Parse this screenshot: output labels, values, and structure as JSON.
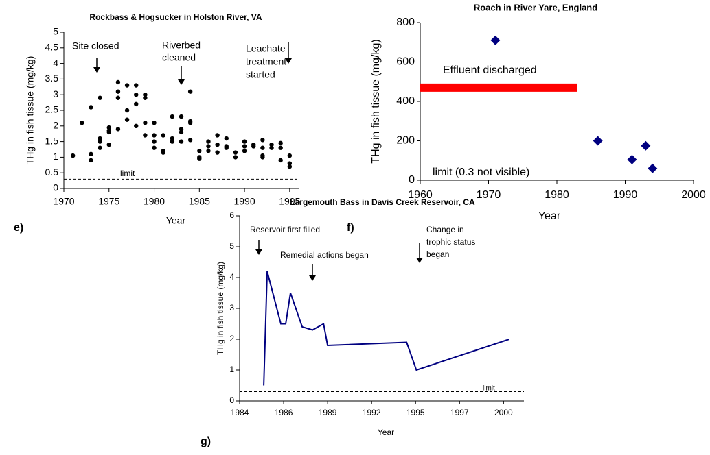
{
  "chart_data": [
    {
      "type": "scatter",
      "title": "Rockbass & Hogsucker in Holston River, VA",
      "panel_label": "e)",
      "x_label": "Year",
      "y_label": "THg in fish tissue (mg/kg)",
      "marker": "circle",
      "color": "#000000",
      "xlim": [
        1970,
        1996
      ],
      "xticks": [
        1970,
        1975,
        1980,
        1985,
        1990,
        1995
      ],
      "ylim": [
        0,
        5
      ],
      "yticks": [
        0,
        0.5,
        1,
        1.5,
        2,
        2.5,
        3,
        3.5,
        4,
        4.5,
        5
      ],
      "x": [
        1971,
        1972,
        1973,
        1973,
        1973,
        1974,
        1974,
        1974,
        1974,
        1975,
        1975,
        1975,
        1975,
        1976,
        1976,
        1976,
        1976,
        1977,
        1977,
        1977,
        1978,
        1978,
        1978,
        1978,
        1979,
        1979,
        1979,
        1979,
        1980,
        1980,
        1980,
        1980,
        1981,
        1981,
        1981,
        1982,
        1982,
        1982,
        1983,
        1983,
        1983,
        1983,
        1984,
        1984,
        1984,
        1984,
        1985,
        1985,
        1985,
        1986,
        1986,
        1986,
        1987,
        1987,
        1987,
        1988,
        1988,
        1988,
        1989,
        1989,
        1990,
        1990,
        1990,
        1991,
        1991,
        1992,
        1992,
        1992,
        1992,
        1993,
        1993,
        1994,
        1994,
        1994,
        1995,
        1995,
        1995
      ],
      "values": [
        1.05,
        2.1,
        2.6,
        1.1,
        0.9,
        2.9,
        1.6,
        1.5,
        1.3,
        1.95,
        1.85,
        1.8,
        1.4,
        3.4,
        3.1,
        2.9,
        1.9,
        3.3,
        2.5,
        2.2,
        3.3,
        3.0,
        2.7,
        2.0,
        3.0,
        2.9,
        2.1,
        1.7,
        2.1,
        1.7,
        1.5,
        1.3,
        1.7,
        1.2,
        1.15,
        2.3,
        1.6,
        1.5,
        2.3,
        1.9,
        1.8,
        1.5,
        3.1,
        2.15,
        2.1,
        1.55,
        1.2,
        1.0,
        0.95,
        1.5,
        1.35,
        1.2,
        1.7,
        1.4,
        1.15,
        1.6,
        1.35,
        1.3,
        1.15,
        1.0,
        1.5,
        1.35,
        1.2,
        1.4,
        1.35,
        1.55,
        1.3,
        1.05,
        1.0,
        1.4,
        1.3,
        1.45,
        1.3,
        0.9,
        1.05,
        0.8,
        0.7
      ],
      "limit": {
        "label": "limit",
        "value": 0.3
      },
      "annotations": [
        {
          "lines": [
            "Site closed"
          ]
        },
        {
          "lines": [
            "Riverbed",
            "cleaned"
          ]
        },
        {
          "lines": [
            "Leachate",
            "treatment",
            "started"
          ]
        }
      ]
    },
    {
      "type": "scatter",
      "title": "Roach in River Yare, England",
      "panel_label": "f)",
      "x_label": "Year",
      "y_label": "THg in fish tissue (mg/kg)",
      "marker": "diamond",
      "color": "#000080",
      "xlim": [
        1960,
        2000
      ],
      "xticks": [
        1960,
        1970,
        1980,
        1990,
        2000
      ],
      "ylim": [
        0,
        800
      ],
      "yticks": [
        0,
        200,
        400,
        600,
        800
      ],
      "x": [
        1971,
        1986,
        1991,
        1993,
        1994
      ],
      "values": [
        710,
        200,
        105,
        175,
        60
      ],
      "highlight": {
        "label": "Effluent discharged",
        "x": [
          1960,
          1983
        ],
        "y": 470,
        "color": "#ff0000"
      },
      "annotations": [
        {
          "lines": [
            "limit (0.3 not visible)"
          ]
        }
      ]
    },
    {
      "type": "line",
      "title": "Largemouth Bass in Davis Creek Reservoir, CA",
      "panel_label": "g)",
      "x_label": "Year",
      "y_label": "THg in fish tissue (mg/kg)",
      "color": "#000080",
      "xlim": [
        1983.75,
        2001.2
      ],
      "xticks": [
        {
          "value": 1983.75,
          "label": "1984"
        },
        {
          "value": 1986.45,
          "label": "1986"
        },
        {
          "value": 1989.15,
          "label": "1989"
        },
        {
          "value": 1991.85,
          "label": "1992"
        },
        {
          "value": 1994.55,
          "label": "1995"
        },
        {
          "value": 1997.25,
          "label": "1997"
        },
        {
          "value": 1999.95,
          "label": "2000"
        }
      ],
      "ylim": [
        0,
        6
      ],
      "yticks": [
        0,
        1,
        2,
        3,
        4,
        5,
        6
      ],
      "x": [
        1985.23,
        1985.44,
        1986.28,
        1986.58,
        1986.87,
        1987.59,
        1988.22,
        1988.9,
        1989.15,
        1994.0,
        1994.6,
        2000.3
      ],
      "values": [
        0.5,
        4.2,
        2.5,
        2.5,
        3.5,
        2.4,
        2.3,
        2.5,
        1.8,
        1.9,
        1.0,
        2.0
      ],
      "limit": {
        "label": "limit",
        "value": 0.3
      },
      "annotations": [
        {
          "lines": [
            "Reservoir first filled"
          ]
        },
        {
          "lines": [
            "Remedial actions began"
          ]
        },
        {
          "lines": [
            "Change in",
            "trophic status",
            "began"
          ]
        }
      ]
    }
  ]
}
